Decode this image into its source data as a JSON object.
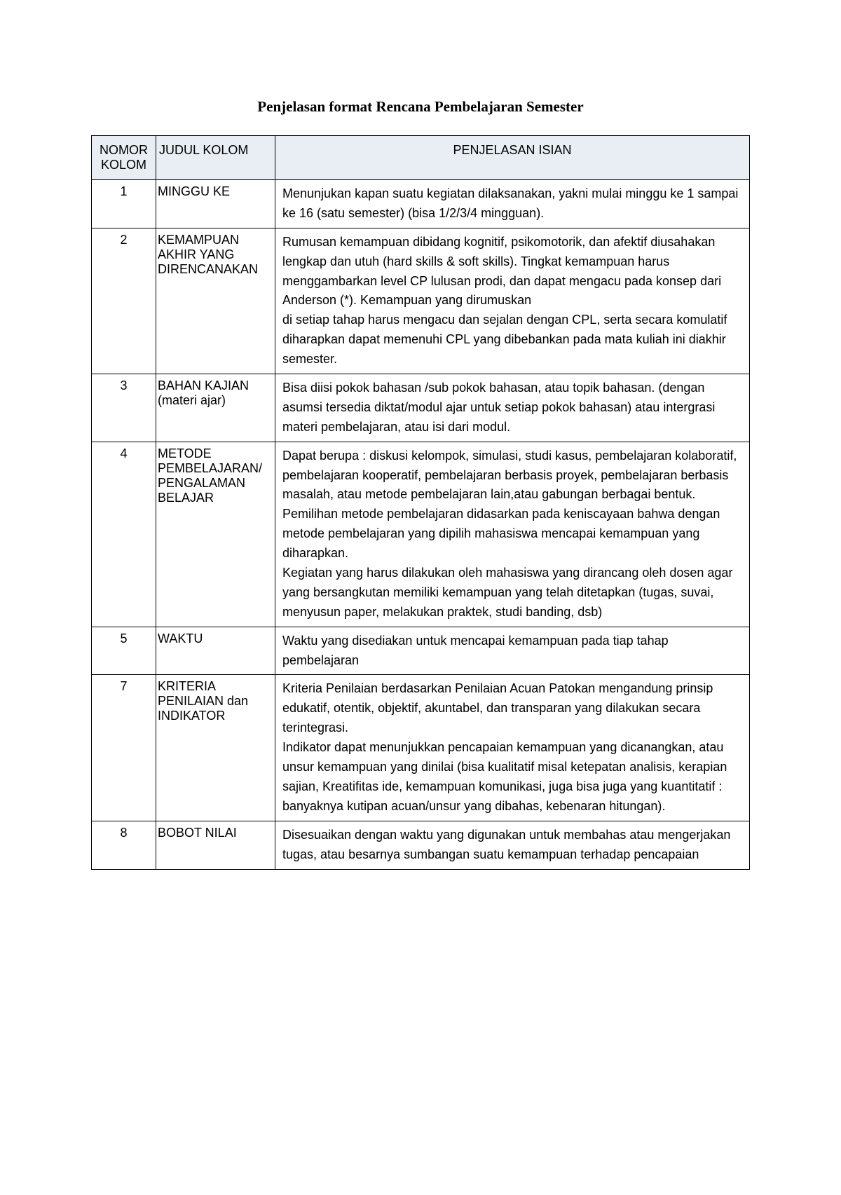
{
  "title": "Penjelasan format Rencana Pembelajaran Semester",
  "table": {
    "headers": {
      "nomor": "NOMOR KOLOM",
      "judul": "JUDUL KOLOM",
      "penjelasan": "PENJELASAN ISIAN"
    },
    "rows": [
      {
        "nomor": "1",
        "judul": "MINGGU KE",
        "penjelasan": "Menunjukan kapan suatu kegiatan dilaksanakan, yakni mulai minggu ke 1 sampai ke 16 (satu semester) (bisa 1/2/3/4 mingguan)."
      },
      {
        "nomor": "2",
        "judul": "KEMAMPUAN AKHIR YANG DIRENCANAKAN",
        "penjelasan": "Rumusan kemampuan dibidang kognitif, psikomotorik, dan afektif  diusahakan  lengkap dan utuh (hard skills & soft skills). Tingkat kemampuan harus menggambarkan level CP lulusan prodi, dan dapat mengacu pada konsep dari Anderson (*). Kemampuan yang dirumuskan\ndi setiap tahap harus mengacu dan sejalan dengan CPL, serta secara komulatif diharapkan dapat memenuhi CPL yang dibebankan pada mata kuliah ini diakhir semester."
      },
      {
        "nomor": "3",
        "judul": "BAHAN KAJIAN (materi ajar)",
        "penjelasan": "Bisa diisi pokok bahasan /sub pokok bahasan, atau topik bahasan. (dengan asumsi tersedia diktat/modul ajar untuk setiap pokok bahasan) atau intergrasi materi pembelajaran, atau isi dari modul."
      },
      {
        "nomor": "4",
        "judul": "METODE PEMBELAJARAN/ PENGALAMAN BELAJAR",
        "penjelasan": "Dapat berupa : diskusi kelompok, simulasi, studi kasus, pembelajaran kolaboratif, pembelajaran kooperatif, pembelajaran berbasis proyek, pembelajaran berbasis masalah, atau metode pembelajaran lain,atau gabungan berbagai bentuk. Pemilihan metode pembelajaran didasarkan pada keniscayaan bahwa dengan metode pembelajaran yang dipilih mahasiswa mencapai kemampuan yang diharapkan.\nKegiatan yang harus dilakukan oleh mahasiswa yang dirancang oleh dosen agar yang bersangkutan memiliki kemampuan yang telah ditetapkan (tugas, suvai, menyusun paper, melakukan praktek, studi banding, dsb)"
      },
      {
        "nomor": "5",
        "judul": "WAKTU",
        "penjelasan": "Waktu yang disediakan untuk mencapai kemampuan pada tiap tahap pembelajaran"
      },
      {
        "nomor": "7",
        "judul": "KRITERIA PENILAIAN dan INDIKATOR",
        "penjelasan": "Kriteria Penilaian berdasarkan Penilaian Acuan Patokan mengandung prinsip edukatif, otentik, objektif, akuntabel, dan transparan yang dilakukan secara terintegrasi.\nIndikator dapat menunjukkan pencapaian kemampuan yang dicanangkan, atau unsur kemampuan yang dinilai (bisa kualitatif misal ketepatan analisis, kerapian sajian, Kreatifitas ide, kemampuan komunikasi, juga bisa juga yang kuantitatif : banyaknya kutipan acuan/unsur yang dibahas, kebenaran hitungan)."
      },
      {
        "nomor": "8",
        "judul": "BOBOT NILAI",
        "penjelasan": "Disesuaikan dengan waktu yang digunakan untuk membahas atau mengerjakan tugas, atau besarnya sumbangan suatu kemampuan terhadap pencapaian"
      }
    ]
  }
}
